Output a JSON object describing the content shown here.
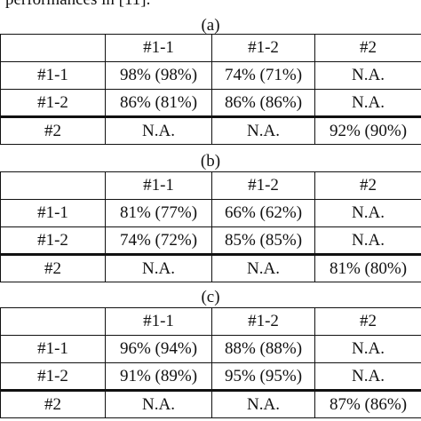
{
  "caption": "performances in [11].",
  "columns": [
    "",
    "#1-1",
    "#1-2",
    "#2"
  ],
  "panels": [
    {
      "label": "(a)",
      "rows": [
        {
          "name": "#1-1",
          "cells": [
            "98% (98%)",
            "74% (71%)",
            "N.A."
          ]
        },
        {
          "name": "#1-2",
          "cells": [
            "86% (81%)",
            "86% (86%)",
            "N.A."
          ]
        },
        {
          "name": "#2",
          "cells": [
            "N.A.",
            "N.A.",
            "92% (90%)"
          ]
        }
      ]
    },
    {
      "label": "(b)",
      "rows": [
        {
          "name": "#1-1",
          "cells": [
            "81% (77%)",
            "66% (62%)",
            "N.A."
          ]
        },
        {
          "name": "#1-2",
          "cells": [
            "74% (72%)",
            "85% (85%)",
            "N.A."
          ]
        },
        {
          "name": "#2",
          "cells": [
            "N.A.",
            "N.A.",
            "81% (80%)"
          ]
        }
      ]
    },
    {
      "label": "(c)",
      "rows": [
        {
          "name": "#1-1",
          "cells": [
            "96% (94%)",
            "88% (88%)",
            "N.A."
          ]
        },
        {
          "name": "#1-2",
          "cells": [
            "91% (89%)",
            "95% (95%)",
            "N.A."
          ]
        },
        {
          "name": "#2",
          "cells": [
            "N.A.",
            "N.A.",
            "87% (86%)"
          ]
        }
      ]
    }
  ]
}
